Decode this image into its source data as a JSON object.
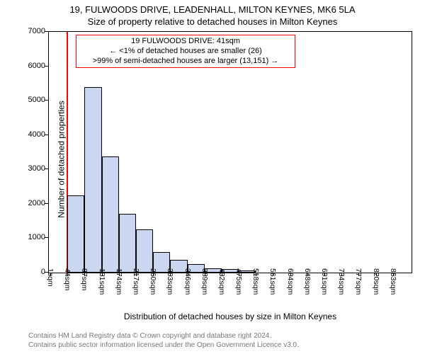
{
  "chart": {
    "type": "histogram",
    "title_line1": "19, FULWOODS DRIVE, LEADENHALL, MILTON KEYNES, MK6 5LA",
    "title_line2": "Size of property relative to detached houses in Milton Keynes",
    "title_fontsize": 13,
    "y_axis": {
      "label": "Number of detached properties",
      "label_fontsize": 12,
      "min": 0,
      "max": 7000,
      "ticks": [
        0,
        1000,
        2000,
        3000,
        4000,
        5000,
        6000,
        7000
      ],
      "tick_fontsize": 11
    },
    "x_axis": {
      "label": "Distribution of detached houses by size in Milton Keynes",
      "label_fontsize": 12,
      "tick_labels": [
        "1sqm",
        "44sqm",
        "87sqm",
        "131sqm",
        "174sqm",
        "217sqm",
        "260sqm",
        "303sqm",
        "346sqm",
        "389sqm",
        "432sqm",
        "475sqm",
        "518sqm",
        "561sqm",
        "604sqm",
        "648sqm",
        "691sqm",
        "734sqm",
        "777sqm",
        "820sqm",
        "863sqm"
      ],
      "tick_fontsize": 10.5
    },
    "bars": {
      "values": [
        5,
        2250,
        5400,
        3380,
        1700,
        1250,
        600,
        370,
        250,
        120,
        100,
        60,
        20,
        15,
        12,
        10,
        8,
        6,
        5,
        4,
        3
      ],
      "fill_color": "#c9d7f1",
      "border_color": "#000000"
    },
    "reference_line": {
      "color": "#ff0000",
      "position": 41,
      "width": 2
    },
    "annotation": {
      "border_color": "#ff0000",
      "background_color": "#ffffff",
      "lines": [
        "19 FULWOODS DRIVE: 41sqm",
        "← <1% of detached houses are smaller (26)",
        ">99% of semi-detached houses are larger (13,151) →"
      ],
      "fontsize": 11
    },
    "background_color": "#ffffff",
    "plot_border_color": "#000000"
  },
  "footer": {
    "line1": "Contains HM Land Registry data © Crown copyright and database right 2024.",
    "line2": "Contains public sector information licensed under the Open Government Licence v3.0.",
    "color": "#777777",
    "fontsize": 10
  }
}
